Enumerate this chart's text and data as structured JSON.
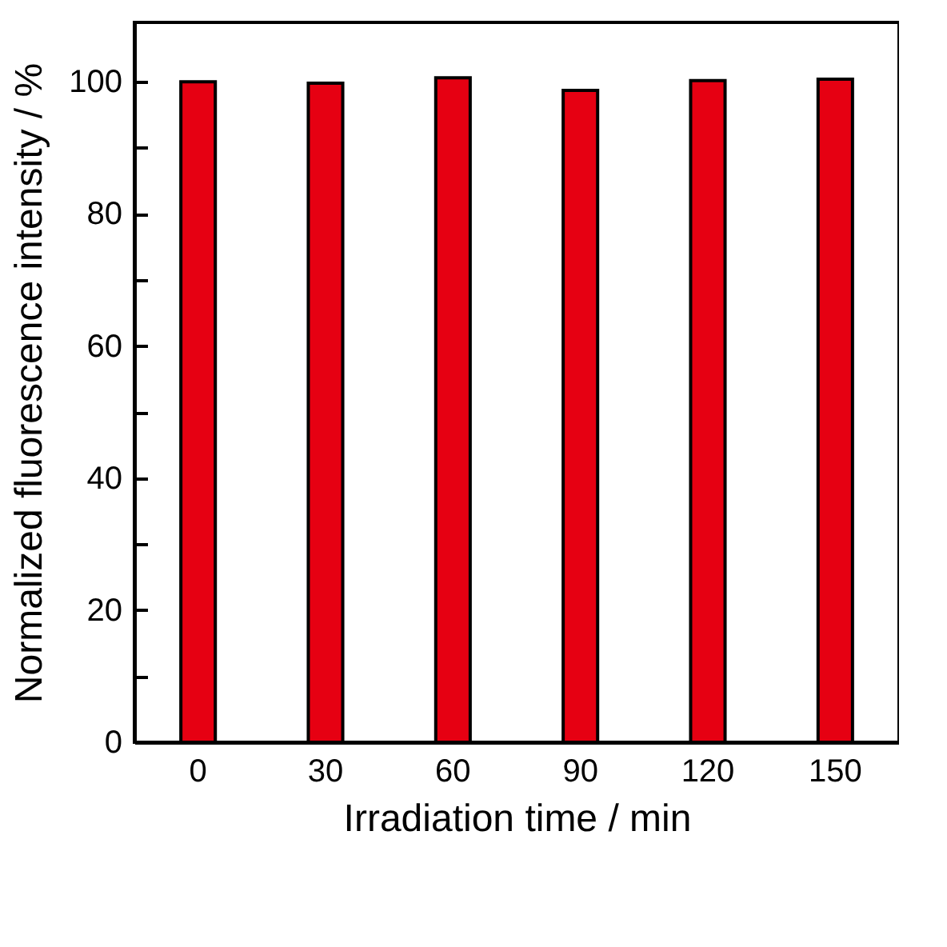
{
  "chart_data": {
    "type": "bar",
    "xlabel": "Irradiation time / min",
    "ylabel": "Normalized fluorescence intensity / %",
    "categories": [
      "0",
      "30",
      "60",
      "90",
      "120",
      "150"
    ],
    "values": [
      100,
      99.8,
      100.6,
      98.7,
      100.2,
      100.4
    ],
    "color": "#e60012",
    "ylim": [
      0,
      109
    ],
    "yticks": [
      0,
      {
        "value": 10,
        "label": null
      },
      20,
      {
        "value": 30,
        "label": null
      },
      40,
      {
        "value": 50,
        "label": null
      },
      60,
      {
        "value": 70,
        "label": null
      },
      80,
      {
        "value": 90,
        "label": null
      },
      100
    ],
    "grid": false
  }
}
